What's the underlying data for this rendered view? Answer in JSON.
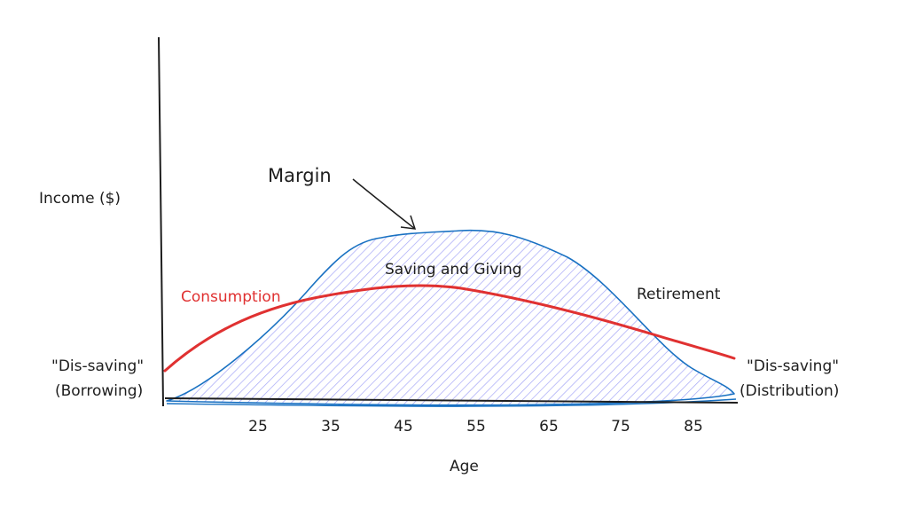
{
  "axes": {
    "y_label": "Income ($)",
    "x_label": "Age",
    "ticks": [
      "25",
      "35",
      "45",
      "55",
      "65",
      "75",
      "85"
    ]
  },
  "annotations": {
    "margin": "Margin",
    "saving_giving": "Saving and Giving",
    "retirement": "Retirement",
    "consumption": "Consumption",
    "left_note_line1": "\"Dis-saving\"",
    "left_note_line2": "(Borrowing)",
    "right_note_line1": "\"Dis-saving\"",
    "right_note_line2": "(Distribution)"
  },
  "colors": {
    "income_curve": "#1971c2",
    "income_fill": "#a5a6f6",
    "consumption_curve": "#e03131",
    "ink": "#1e1e1e"
  }
}
